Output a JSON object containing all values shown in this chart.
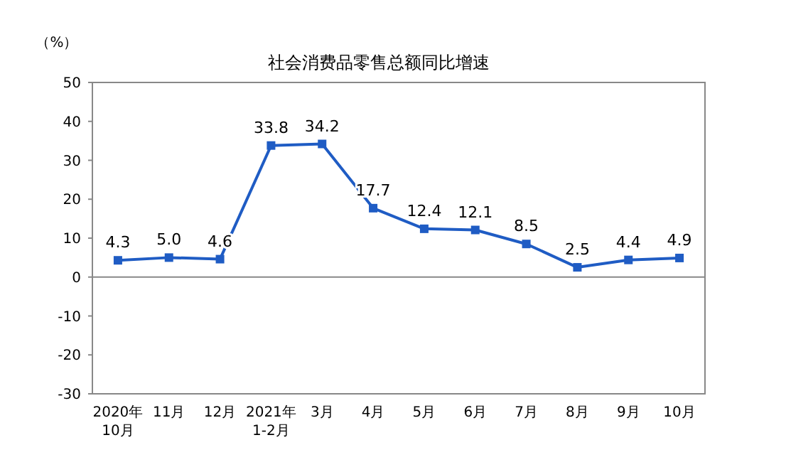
{
  "chart_data": {
    "type": "line",
    "title": "社会消费品零售总额同比增速",
    "ylabel": "（%）",
    "categories": [
      "2020年\n10月",
      "11月",
      "12月",
      "2021年\n1-2月",
      "3月",
      "4月",
      "5月",
      "6月",
      "7月",
      "8月",
      "9月",
      "10月"
    ],
    "series": [
      {
        "color": "#1f5cc4",
        "values": [
          4.3,
          5.0,
          4.6,
          33.8,
          34.2,
          17.7,
          12.4,
          12.1,
          8.5,
          2.5,
          4.4,
          4.9
        ]
      }
    ],
    "value_labels": [
      "4.3",
      "5.0",
      "4.6",
      "33.8",
      "34.2",
      "17.7",
      "12.4",
      "12.1",
      "8.5",
      "2.5",
      "4.4",
      "4.9"
    ],
    "ylim": [
      -30,
      50
    ],
    "yticks": [
      -30,
      -20,
      -10,
      0,
      10,
      20,
      30,
      40,
      50
    ],
    "marker": "square",
    "line_style": "solid"
  }
}
